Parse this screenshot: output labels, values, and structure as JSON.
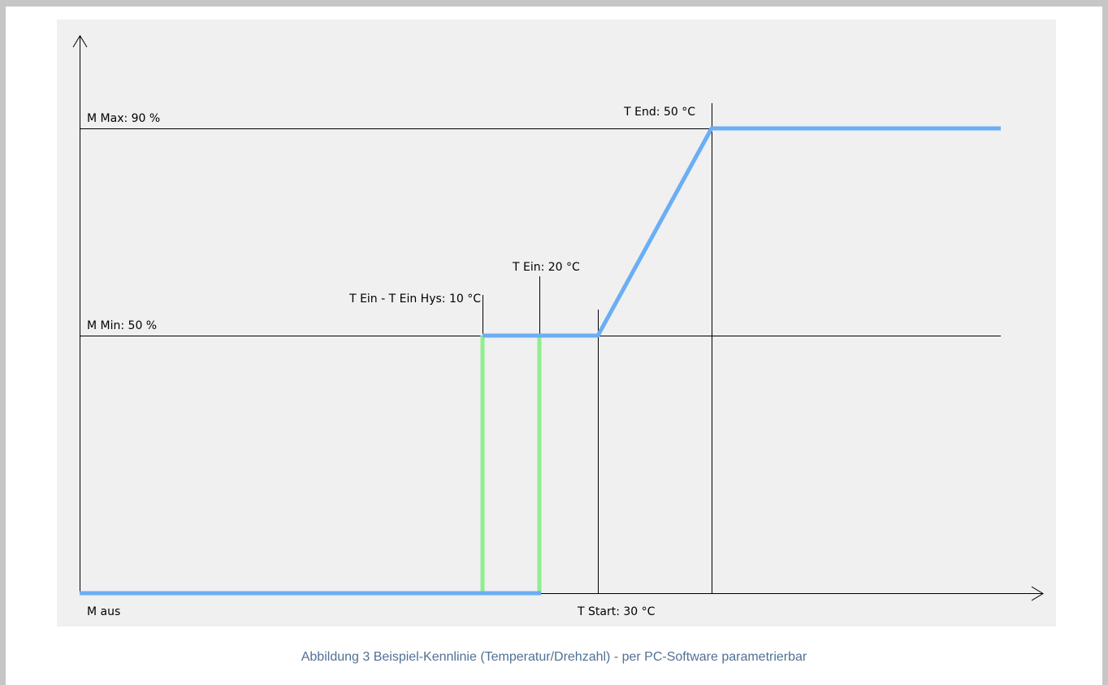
{
  "diagram": {
    "labels": {
      "m_max": "M Max: 90 %",
      "m_min": "M Min: 50 %",
      "m_aus": "M aus",
      "t_start": "T Start: 30 °C",
      "t_end": "T End: 50 °C",
      "t_ein": "T Ein: 20 °C",
      "t_ein_hys": "T Ein - T Ein Hys: 10 °C"
    },
    "caption": "Abbildung 3 Beispiel-Kennlinie (Temperatur/Drehzahl) - per PC-Software parametrierbar"
  }
}
